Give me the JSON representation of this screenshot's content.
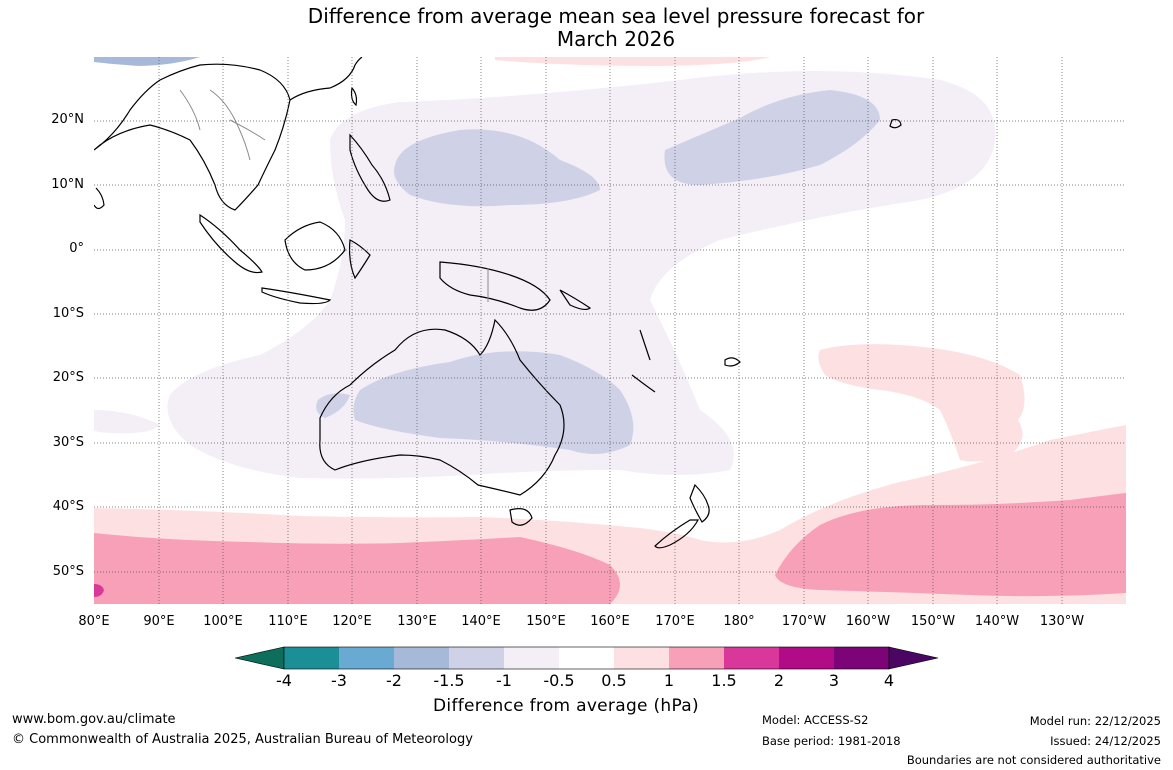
{
  "title": {
    "line1": "Difference from average mean sea level pressure forecast for",
    "line2": "March 2026"
  },
  "map": {
    "lat_labels": [
      "20°N",
      "10°N",
      "0°",
      "10°S",
      "20°S",
      "30°S",
      "40°S",
      "50°S"
    ],
    "lon_labels": [
      "80°E",
      "90°E",
      "100°E",
      "110°E",
      "120°E",
      "130°E",
      "140°E",
      "150°E",
      "160°E",
      "170°E",
      "180°",
      "170°W",
      "160°W",
      "150°W",
      "140°W",
      "130°W"
    ],
    "colors": {
      "ocean": "#ffffff",
      "coast": "#000000",
      "border": "#8a8a8a",
      "grid": "#555555"
    }
  },
  "colorbar": {
    "title": "Difference from average (hPa)",
    "ticks": [
      "-4",
      "-3",
      "-2",
      "-1.5",
      "-1",
      "-0.5",
      "0.5",
      "1",
      "1.5",
      "2",
      "3",
      "4"
    ],
    "colors": [
      "#0d6e5c",
      "#1a8f96",
      "#69aad2",
      "#a7b9d8",
      "#cfd2e7",
      "#f4eef6",
      "#ffffff",
      "#fde1e2",
      "#f8a0b8",
      "#d9379a",
      "#b10b87",
      "#7d0478",
      "#4a0662"
    ]
  },
  "footer": {
    "website": "www.bom.gov.au/climate",
    "copyright": "© Commonwealth of Australia 2025, Australian Bureau of Meteorology",
    "model": "Model: ACCESS-S2",
    "base_period": "Base period: 1981-2018",
    "model_run": "Model run: 22/12/2025",
    "issued": "Issued: 24/12/2025",
    "disclaimer": "Boundaries are not considered authoritative"
  }
}
